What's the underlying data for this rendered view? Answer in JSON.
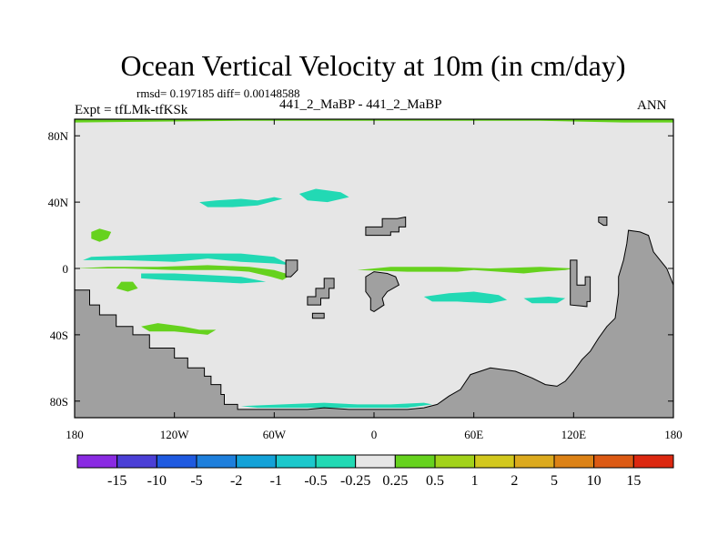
{
  "header": {
    "title": "Ocean Vertical Velocity at 10m (in cm/day)",
    "rmsd_line": "rmsd= 0.197185 diff= 0.00148588",
    "expt_line": "Expt = tfLMk-tfKSk",
    "center_line": "441_2_MaBP - 441_2_MaBP",
    "period": "ANN"
  },
  "chart_data": {
    "type": "heatmap",
    "title": "Ocean Vertical Velocity at 10m (in cm/day)",
    "xlabel": "",
    "ylabel": "",
    "xlim": [
      -180,
      180
    ],
    "ylim": [
      -90,
      90
    ],
    "x_ticks": [
      {
        "value": -180,
        "label": "180"
      },
      {
        "value": -120,
        "label": "120W"
      },
      {
        "value": -60,
        "label": "60W"
      },
      {
        "value": 0,
        "label": "0"
      },
      {
        "value": 60,
        "label": "60E"
      },
      {
        "value": 120,
        "label": "120E"
      },
      {
        "value": 180,
        "label": "180"
      }
    ],
    "y_ticks": [
      {
        "value": 80,
        "label": "80N"
      },
      {
        "value": 40,
        "label": "40N"
      },
      {
        "value": 0,
        "label": "0"
      },
      {
        "value": -40,
        "label": "40S"
      },
      {
        "value": -80,
        "label": "80S"
      }
    ],
    "colorbar": {
      "levels": [
        "-15",
        "-10",
        "-5",
        "-2",
        "-1",
        "-0.5",
        "-0.25",
        "0.25",
        "0.5",
        "1",
        "2",
        "5",
        "10",
        "15"
      ],
      "colors": [
        "#8a2be2",
        "#4b3fd6",
        "#1f5ae0",
        "#1e7fdc",
        "#14a2d8",
        "#1cc8cc",
        "#22d9b4",
        "#e6e6e6",
        "#66d21e",
        "#a2d21a",
        "#d2c81e",
        "#dcaa1e",
        "#dc8216",
        "#dc5a14",
        "#dc2810"
      ]
    },
    "land_color": "#a0a0a0",
    "background_color": "#e6e6e6",
    "regions": [
      {
        "category": "land",
        "name": "Antarctica",
        "lonlat": [
          [
            -180,
            -90
          ],
          [
            -180,
            -13
          ],
          [
            -171,
            -13
          ],
          [
            -171,
            -22
          ],
          [
            -165,
            -22
          ],
          [
            -165,
            -28
          ],
          [
            -155,
            -28
          ],
          [
            -155,
            -35
          ],
          [
            -145,
            -35
          ],
          [
            -145,
            -40
          ],
          [
            -135,
            -40
          ],
          [
            -135,
            -48
          ],
          [
            -120,
            -48
          ],
          [
            -120,
            -54
          ],
          [
            -112,
            -54
          ],
          [
            -112,
            -60
          ],
          [
            -102,
            -60
          ],
          [
            -102,
            -65
          ],
          [
            -98,
            -65
          ],
          [
            -98,
            -70
          ],
          [
            -92,
            -70
          ],
          [
            -92,
            -76
          ],
          [
            -90,
            -76
          ],
          [
            -90,
            -82
          ],
          [
            -82,
            -82
          ],
          [
            -82,
            -85
          ],
          [
            -60,
            -85
          ],
          [
            -40,
            -85
          ],
          [
            -30,
            -84
          ],
          [
            -15,
            -85
          ],
          [
            0,
            -85
          ],
          [
            20,
            -85
          ],
          [
            30,
            -84
          ],
          [
            38,
            -82
          ],
          [
            45,
            -77
          ],
          [
            52,
            -73
          ],
          [
            58,
            -64
          ],
          [
            70,
            -60
          ],
          [
            85,
            -62
          ],
          [
            95,
            -66
          ],
          [
            103,
            -70
          ],
          [
            110,
            -71
          ],
          [
            115,
            -68
          ],
          [
            120,
            -62
          ],
          [
            125,
            -55
          ],
          [
            130,
            -50
          ],
          [
            135,
            -42
          ],
          [
            140,
            -35
          ],
          [
            145,
            -30
          ],
          [
            147,
            -15
          ],
          [
            147,
            -5
          ],
          [
            150,
            5
          ],
          [
            152,
            15
          ],
          [
            153,
            23
          ],
          [
            160,
            22
          ],
          [
            165,
            20
          ],
          [
            168,
            10
          ],
          [
            172,
            5
          ],
          [
            176,
            0
          ],
          [
            180,
            -10
          ],
          [
            180,
            -90
          ]
        ]
      },
      {
        "category": "land",
        "name": "Africa-like island",
        "lonlat": [
          [
            -2,
            -25
          ],
          [
            -2,
            -18
          ],
          [
            -5,
            -14
          ],
          [
            -5,
            -5
          ],
          [
            0,
            -2
          ],
          [
            8,
            -3
          ],
          [
            13,
            -5
          ],
          [
            15,
            -10
          ],
          [
            8,
            -14
          ],
          [
            5,
            -18
          ],
          [
            6,
            -22
          ],
          [
            0,
            -26
          ]
        ]
      },
      {
        "category": "land",
        "name": "North block",
        "lonlat": [
          [
            -5,
            20
          ],
          [
            -5,
            25
          ],
          [
            5,
            25
          ],
          [
            5,
            30
          ],
          [
            14,
            30
          ],
          [
            19,
            31
          ],
          [
            19,
            25
          ],
          [
            15,
            25
          ],
          [
            15,
            22
          ],
          [
            10,
            22
          ],
          [
            10,
            20
          ],
          [
            2,
            20
          ],
          [
            2,
            20
          ]
        ]
      },
      {
        "category": "land",
        "name": "Small island west",
        "lonlat": [
          [
            -53,
            -5
          ],
          [
            -53,
            5
          ],
          [
            -46,
            5
          ],
          [
            -46,
            -1
          ],
          [
            -50,
            -5
          ]
        ]
      },
      {
        "category": "land",
        "name": "Island group",
        "lonlat": [
          [
            -40,
            -22
          ],
          [
            -40,
            -17
          ],
          [
            -35,
            -17
          ],
          [
            -35,
            -12
          ],
          [
            -30,
            -12
          ],
          [
            -30,
            -6
          ],
          [
            -24,
            -6
          ],
          [
            -24,
            -12
          ],
          [
            -27,
            -12
          ],
          [
            -27,
            -18
          ],
          [
            -32,
            -18
          ],
          [
            -32,
            -22
          ]
        ]
      },
      {
        "category": "land",
        "name": "Islet",
        "lonlat": [
          [
            -37,
            -30
          ],
          [
            -37,
            -27
          ],
          [
            -30,
            -27
          ],
          [
            -30,
            -30
          ]
        ]
      },
      {
        "category": "land",
        "name": "East peninsula",
        "lonlat": [
          [
            118,
            -22
          ],
          [
            118,
            5
          ],
          [
            122,
            5
          ],
          [
            122,
            -10
          ],
          [
            127,
            -10
          ],
          [
            127,
            -5
          ],
          [
            130,
            -5
          ],
          [
            130,
            -20
          ],
          [
            128,
            -20
          ],
          [
            128,
            -23
          ]
        ]
      },
      {
        "category": "land",
        "name": "East islet",
        "lonlat": [
          [
            135,
            28
          ],
          [
            135,
            31
          ],
          [
            140,
            31
          ],
          [
            140,
            26
          ],
          [
            138,
            26
          ]
        ]
      },
      {
        "category": "positive",
        "name": "Arctic strip",
        "lonlat": [
          [
            -180,
            88
          ],
          [
            -180,
            90
          ],
          [
            180,
            90
          ],
          [
            180,
            88
          ],
          [
            150,
            88
          ],
          [
            100,
            89
          ],
          [
            0,
            89
          ],
          [
            -80,
            89
          ]
        ]
      },
      {
        "category": "positive",
        "name": "Equatorial west band",
        "lonlat": [
          [
            -180,
            0
          ],
          [
            -150,
            0
          ],
          [
            -120,
            -1
          ],
          [
            -90,
            -1
          ],
          [
            -75,
            -2
          ],
          [
            -62,
            -5
          ],
          [
            -55,
            -7
          ],
          [
            -50,
            -4
          ],
          [
            -60,
            -1
          ],
          [
            -75,
            1
          ],
          [
            -100,
            2
          ],
          [
            -130,
            1
          ],
          [
            -160,
            1
          ]
        ]
      },
      {
        "category": "positive",
        "name": "Equatorial east band",
        "lonlat": [
          [
            -10,
            -1
          ],
          [
            20,
            -2
          ],
          [
            50,
            -2
          ],
          [
            60,
            -1
          ],
          [
            75,
            -2
          ],
          [
            90,
            -3
          ],
          [
            100,
            -2
          ],
          [
            115,
            -1
          ],
          [
            120,
            0
          ],
          [
            100,
            1
          ],
          [
            70,
            0
          ],
          [
            40,
            1
          ],
          [
            10,
            1
          ]
        ]
      },
      {
        "category": "positive",
        "name": "Green blob NW",
        "lonlat": [
          [
            -170,
            22
          ],
          [
            -170,
            18
          ],
          [
            -165,
            16
          ],
          [
            -160,
            18
          ],
          [
            -158,
            22
          ],
          [
            -165,
            24
          ]
        ]
      },
      {
        "category": "positive",
        "name": "Green blob",
        "lonlat": [
          [
            -155,
            -12
          ],
          [
            -148,
            -14
          ],
          [
            -142,
            -12
          ],
          [
            -145,
            -8
          ],
          [
            -152,
            -8
          ]
        ]
      },
      {
        "category": "positive",
        "name": "Southern band",
        "lonlat": [
          [
            -140,
            -35
          ],
          [
            -130,
            -33
          ],
          [
            -115,
            -35
          ],
          [
            -105,
            -37
          ],
          [
            -95,
            -37
          ],
          [
            -100,
            -40
          ],
          [
            -120,
            -38
          ],
          [
            -135,
            -38
          ]
        ]
      },
      {
        "category": "negative",
        "name": "North cyan 1",
        "lonlat": [
          [
            -105,
            40
          ],
          [
            -95,
            41
          ],
          [
            -80,
            42
          ],
          [
            -70,
            41
          ],
          [
            -60,
            43
          ],
          [
            -55,
            42
          ],
          [
            -70,
            38
          ],
          [
            -85,
            37
          ],
          [
            -100,
            37
          ]
        ]
      },
      {
        "category": "negative",
        "name": "North cyan 2",
        "lonlat": [
          [
            -45,
            45
          ],
          [
            -35,
            48
          ],
          [
            -20,
            46
          ],
          [
            -15,
            43
          ],
          [
            -28,
            40
          ],
          [
            -40,
            41
          ]
        ]
      },
      {
        "category": "negative",
        "name": "Equatorial cyan 1",
        "lonlat": [
          [
            -175,
            5
          ],
          [
            -150,
            5
          ],
          [
            -120,
            4
          ],
          [
            -100,
            6
          ],
          [
            -80,
            4
          ],
          [
            -60,
            3
          ],
          [
            -50,
            2
          ],
          [
            -60,
            7
          ],
          [
            -80,
            9
          ],
          [
            -110,
            9
          ],
          [
            -140,
            8
          ],
          [
            -170,
            7
          ]
        ]
      },
      {
        "category": "negative",
        "name": "Equatorial cyan 2",
        "lonlat": [
          [
            -140,
            -3
          ],
          [
            -120,
            -3
          ],
          [
            -100,
            -4
          ],
          [
            -80,
            -5
          ],
          [
            -65,
            -8
          ],
          [
            -80,
            -9
          ],
          [
            -100,
            -8
          ],
          [
            -125,
            -7
          ],
          [
            -140,
            -6
          ]
        ]
      },
      {
        "category": "negative",
        "name": "Southern cyan strip",
        "lonlat": [
          [
            -80,
            -83
          ],
          [
            -55,
            -82
          ],
          [
            -30,
            -81
          ],
          [
            -10,
            -82
          ],
          [
            10,
            -82
          ],
          [
            30,
            -81
          ],
          [
            35,
            -82
          ],
          [
            20,
            -84
          ],
          [
            -10,
            -84
          ],
          [
            -40,
            -84
          ],
          [
            -70,
            -84
          ]
        ]
      },
      {
        "category": "negative",
        "name": "Cyan patch east",
        "lonlat": [
          [
            30,
            -17
          ],
          [
            45,
            -15
          ],
          [
            60,
            -14
          ],
          [
            75,
            -16
          ],
          [
            80,
            -19
          ],
          [
            70,
            -21
          ],
          [
            50,
            -20
          ],
          [
            35,
            -20
          ]
        ]
      },
      {
        "category": "negative",
        "name": "Cyan patch far east",
        "lonlat": [
          [
            90,
            -18
          ],
          [
            105,
            -17
          ],
          [
            115,
            -18
          ],
          [
            110,
            -21
          ],
          [
            95,
            -21
          ]
        ]
      }
    ]
  }
}
